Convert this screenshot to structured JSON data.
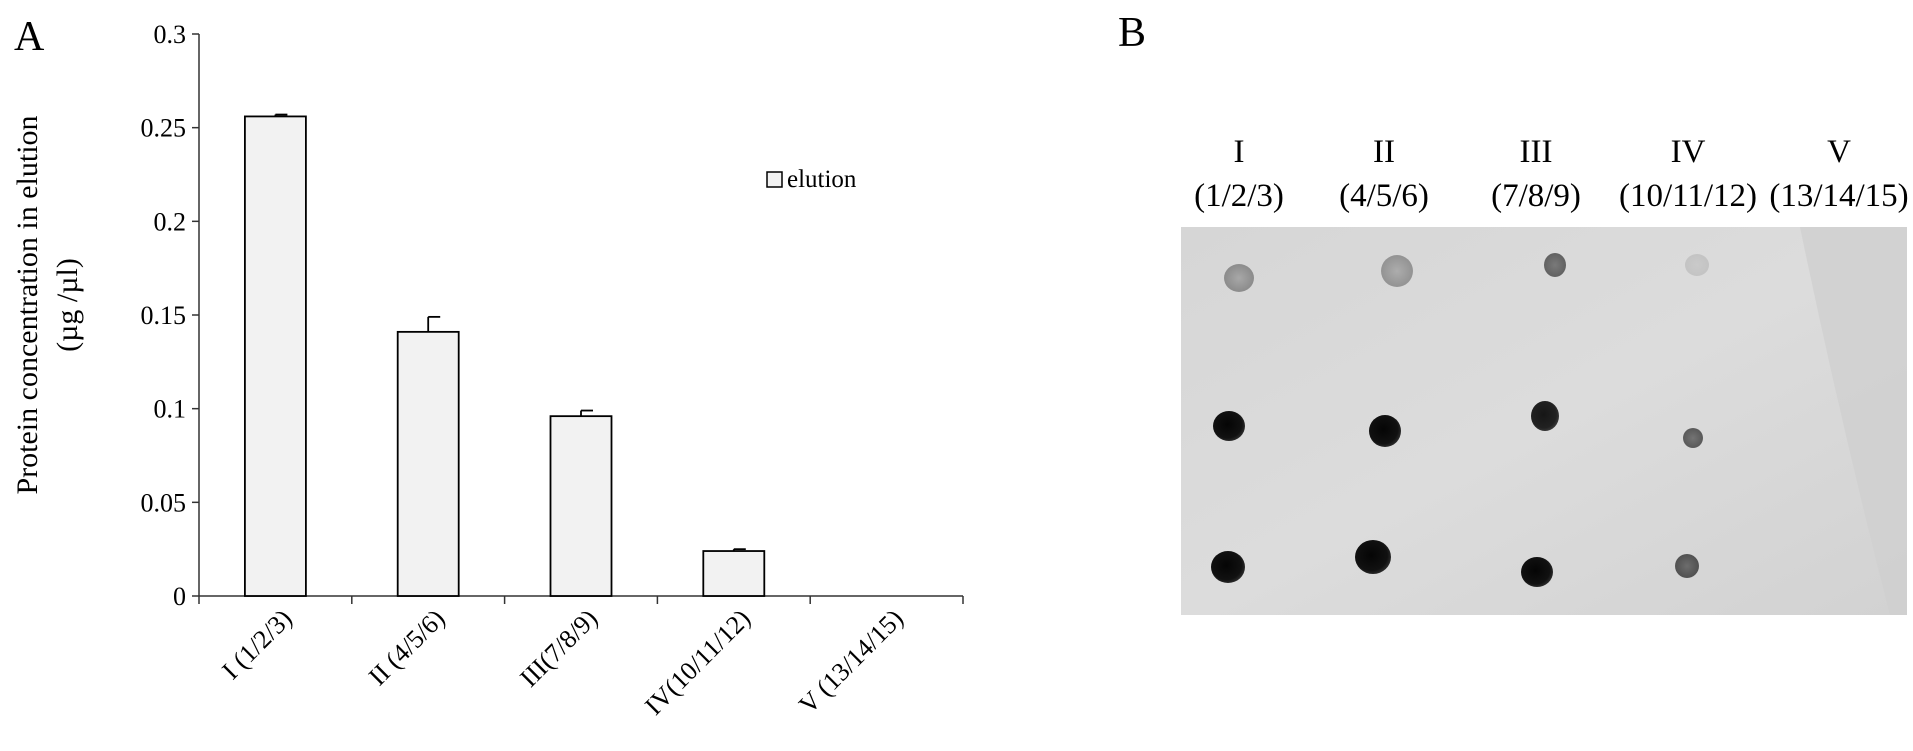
{
  "panel_a_label": "A",
  "panel_b_label": "B",
  "chart_data": {
    "type": "bar",
    "categories": [
      "I (1/2/3)",
      "II (4/5/6)",
      "III(7/8/9)",
      "IV(10/11/12)",
      "V (13/14/15)"
    ],
    "series": [
      {
        "name": "elution",
        "values": [
          0.256,
          0.141,
          0.096,
          0.024,
          0
        ],
        "errors": [
          0.001,
          0.008,
          0.003,
          0.001,
          0
        ]
      }
    ],
    "ylabel_line1": "Protein concentration in elution",
    "ylabel_line2": "(µg /µl)",
    "ylim": [
      0,
      0.3
    ],
    "yticks": [
      "0",
      "0.05",
      "0.1",
      "0.15",
      "0.2",
      "0.25",
      "0.3"
    ],
    "legend_placement": "upper-right",
    "bar_color": "#f2f2f2",
    "grid": false
  },
  "dot_blot": {
    "lanes": [
      {
        "numeral": "I",
        "fractions": "(1/2/3)"
      },
      {
        "numeral": "II",
        "fractions": "(4/5/6)"
      },
      {
        "numeral": "III",
        "fractions": "(7/8/9)"
      },
      {
        "numeral": "IV",
        "fractions": "(10/11/12)"
      },
      {
        "numeral": "V",
        "fractions": "(13/14/15)"
      }
    ]
  }
}
